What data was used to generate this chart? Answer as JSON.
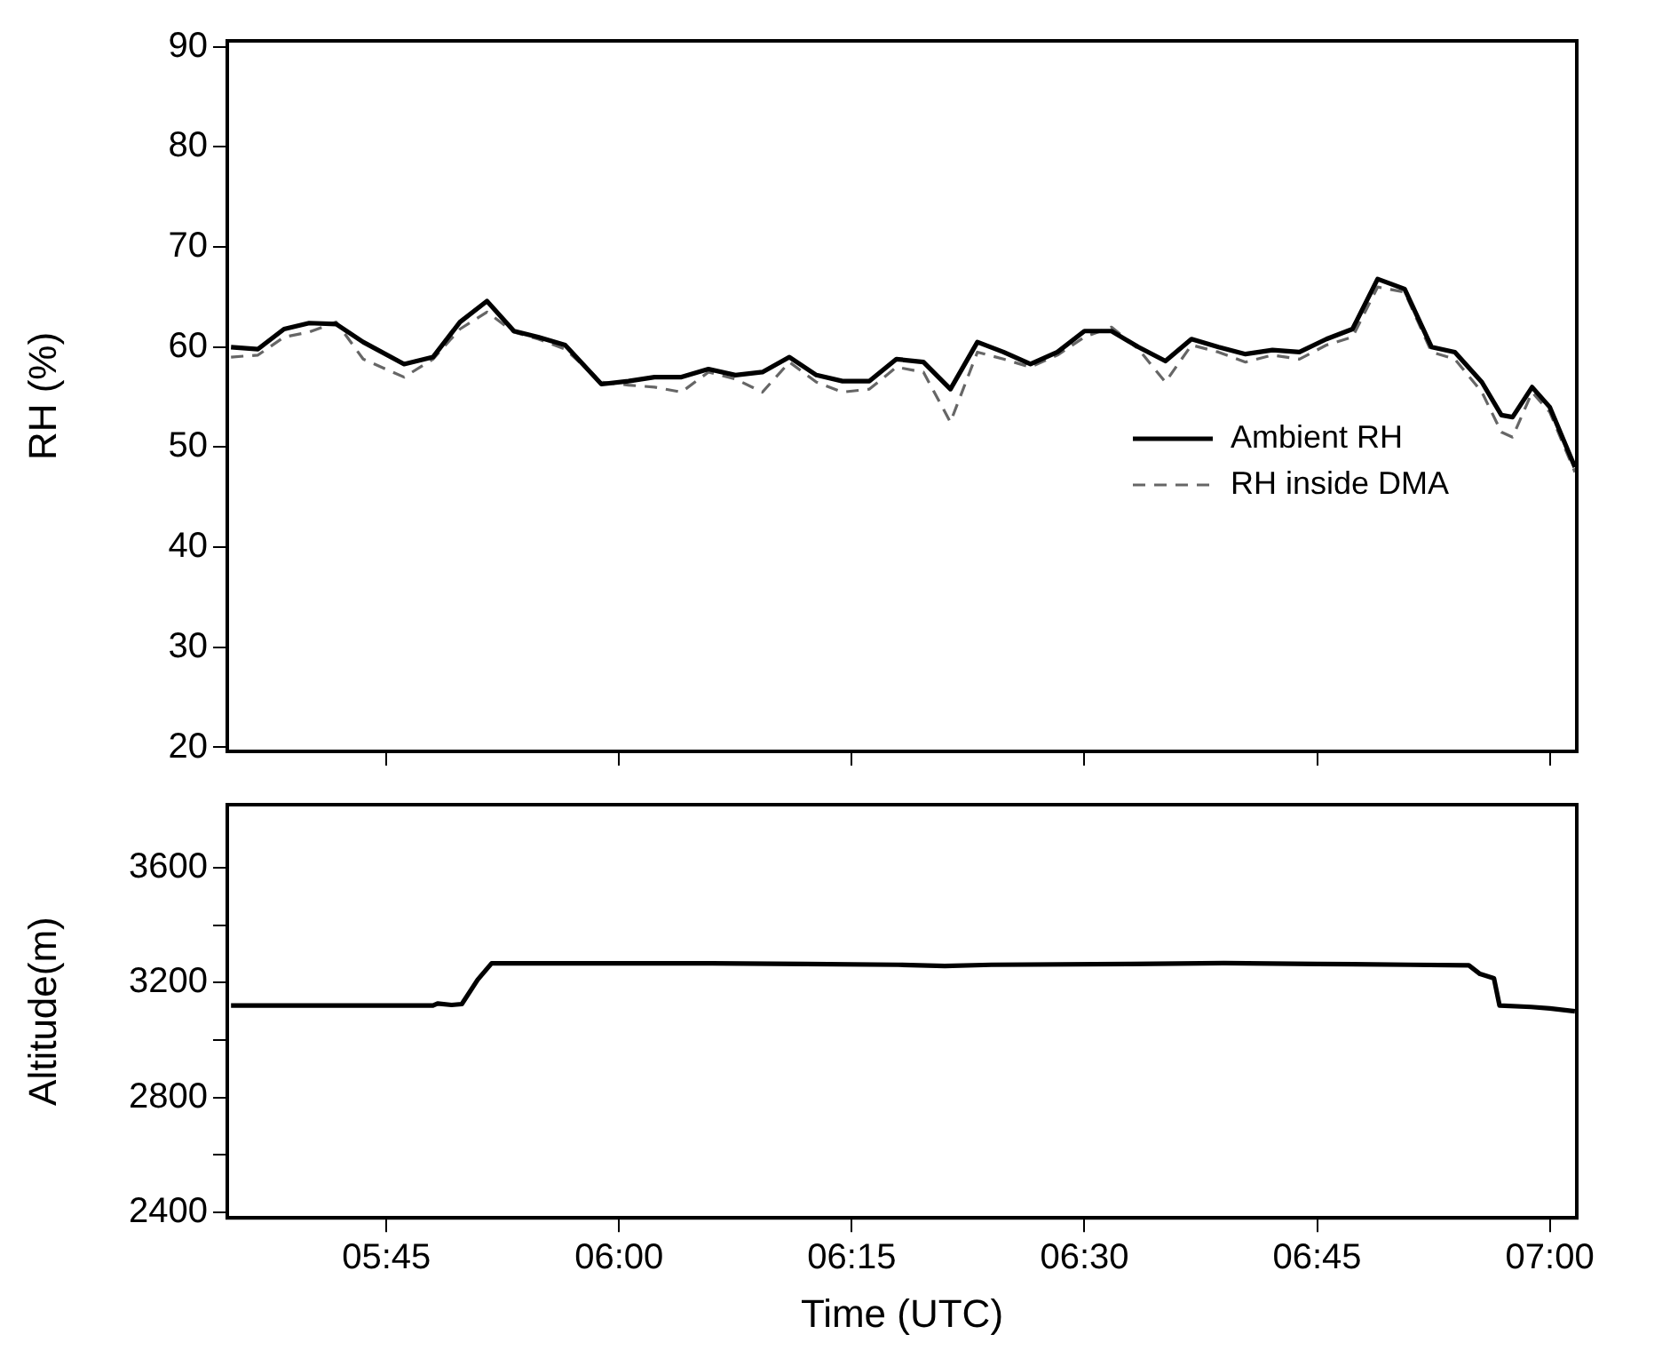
{
  "chart_data": [
    {
      "type": "line",
      "ylabel": "RH (%)",
      "xlim": [
        5.579,
        7.029
      ],
      "xticks": [
        {
          "value": 5.75,
          "label": null
        },
        {
          "value": 6.0,
          "label": null
        },
        {
          "value": 6.25,
          "label": null
        },
        {
          "value": 6.5,
          "label": null
        },
        {
          "value": 6.75,
          "label": null
        },
        {
          "value": 7.0,
          "label": null
        }
      ],
      "ylim": [
        19.6,
        90.6
      ],
      "yticks": [
        20,
        30,
        40,
        50,
        60,
        70,
        80,
        90
      ],
      "tick_labels": "y",
      "legend": "right",
      "grid": false,
      "x": [
        5.583,
        5.612,
        5.64,
        5.667,
        5.696,
        5.725,
        5.769,
        5.8,
        5.829,
        5.858,
        5.887,
        5.913,
        5.942,
        5.981,
        6.01,
        6.038,
        6.067,
        6.096,
        6.125,
        6.154,
        6.183,
        6.212,
        6.24,
        6.269,
        6.298,
        6.327,
        6.356,
        6.385,
        6.413,
        6.442,
        6.471,
        6.5,
        6.529,
        6.558,
        6.587,
        6.615,
        6.644,
        6.673,
        6.702,
        6.731,
        6.76,
        6.788,
        6.815,
        6.844,
        6.873,
        6.898,
        6.927,
        6.948,
        6.96,
        6.981,
        7.0,
        7.027
      ],
      "series": [
        {
          "name": "Ambient RH",
          "color": "#000000",
          "line_style": "solid",
          "values": [
            60,
            59.8,
            61.8,
            62.4,
            62.3,
            60.5,
            58.3,
            59,
            62.5,
            64.6,
            61.6,
            61,
            60.2,
            56.3,
            56.6,
            57,
            57,
            57.8,
            57.2,
            57.5,
            59,
            57.2,
            56.6,
            56.6,
            58.8,
            58.5,
            55.8,
            60.5,
            59.5,
            58.3,
            59.5,
            61.6,
            61.6,
            60,
            58.6,
            60.8,
            60,
            59.3,
            59.7,
            59.5,
            60.8,
            61.8,
            66.8,
            65.8,
            60,
            59.5,
            56.5,
            53.2,
            53,
            56,
            54,
            48
          ]
        },
        {
          "name": "RH inside DMA",
          "color": "#666666",
          "line_style": "dashed",
          "values": [
            59,
            59.2,
            61,
            61.5,
            62.5,
            58.8,
            57,
            58.8,
            61.8,
            63.5,
            61.5,
            60.8,
            59.8,
            56.5,
            56.2,
            56,
            55.5,
            57.5,
            56.8,
            55.5,
            58.5,
            56.5,
            55.5,
            55.8,
            58,
            57.5,
            52.5,
            59.5,
            58.8,
            58,
            59.2,
            61,
            62,
            59.8,
            56.5,
            60.2,
            59.5,
            58.5,
            59.2,
            58.8,
            60.2,
            61,
            66,
            65.5,
            59.5,
            58.8,
            55.5,
            51.5,
            51,
            55.5,
            53.5,
            47.5
          ]
        }
      ]
    },
    {
      "type": "line",
      "ylabel": "Altitude(m)",
      "xlabel": "Time (UTC)",
      "xlim": [
        5.579,
        7.029
      ],
      "xticks": [
        {
          "value": 5.75,
          "label": "05:45"
        },
        {
          "value": 6.0,
          "label": "06:00"
        },
        {
          "value": 6.25,
          "label": "06:15"
        },
        {
          "value": 6.5,
          "label": "06:30"
        },
        {
          "value": 6.75,
          "label": "06:45"
        },
        {
          "value": 7.0,
          "label": "07:00"
        }
      ],
      "ylim": [
        2380,
        3820
      ],
      "yticks": [
        2400,
        {
          "value": 2600,
          "label": null
        },
        2800,
        {
          "value": 3000,
          "label": null
        },
        3200,
        {
          "value": 3400,
          "label": null
        },
        3600
      ],
      "grid": false,
      "x": [
        5.583,
        5.8,
        5.805,
        5.82,
        5.831,
        5.848,
        5.863,
        6.1,
        6.2,
        6.3,
        6.35,
        6.4,
        6.55,
        6.65,
        6.75,
        6.85,
        6.913,
        6.925,
        6.94,
        6.946,
        6.98,
        7.0,
        7.027
      ],
      "series": [
        {
          "color": "#000000",
          "line_style": "solid",
          "values": [
            3120,
            3120,
            3127,
            3122,
            3125,
            3210,
            3267,
            3267,
            3265,
            3262,
            3258,
            3262,
            3265,
            3268,
            3265,
            3262,
            3260,
            3230,
            3215,
            3120,
            3115,
            3110,
            3100
          ]
        }
      ]
    }
  ]
}
